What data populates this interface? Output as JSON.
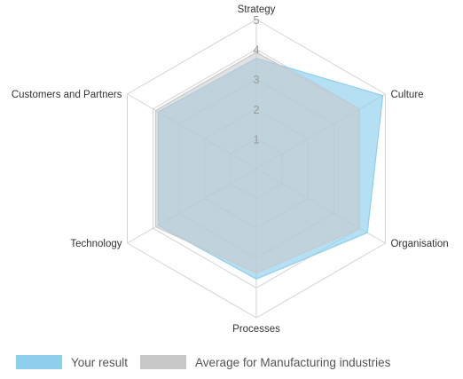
{
  "chart_data": {
    "type": "radar",
    "axes": [
      "Strategy",
      "Culture",
      "Organisation",
      "Processes",
      "Technology",
      "Customers and Partners"
    ],
    "ticks": [
      "1",
      "2",
      "3",
      "4",
      "5"
    ],
    "range": [
      0,
      5
    ],
    "series": [
      {
        "name": "Your result",
        "values": [
          3.7,
          4.9,
          4.3,
          3.7,
          3.8,
          3.8
        ],
        "color": "#8ecfee"
      },
      {
        "name": "Average for Manufacturing industries",
        "values": [
          3.9,
          4.0,
          4.0,
          3.5,
          3.9,
          3.9
        ],
        "color": "#c8c8c8"
      }
    ],
    "grid": "hexagonal",
    "legend_position": "bottom"
  }
}
